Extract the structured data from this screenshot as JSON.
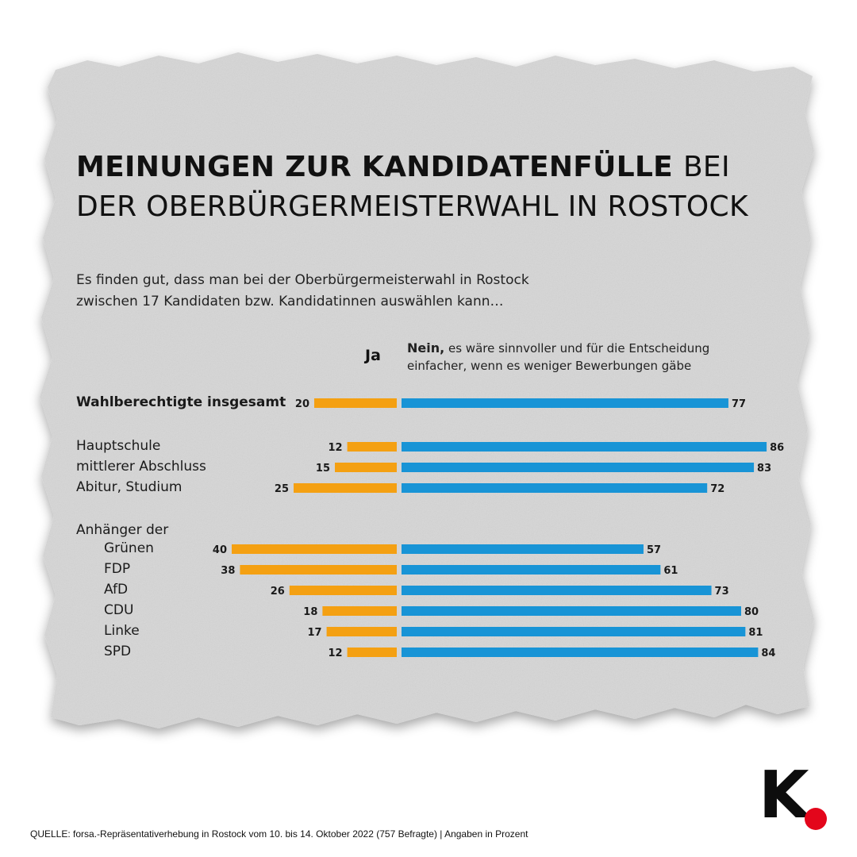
{
  "title": {
    "bold": "MEINUNGEN ZUR KANDIDATENFÜLLE",
    "light_1": "BEI",
    "light_2": "DER OBERBÜRGERMEISTERWAHL IN ROSTOCK"
  },
  "subtitle": {
    "line1": "Es finden gut, dass man bei der Oberbürgermeisterwahl in Rostock",
    "line2": "zwischen 17 Kandidaten bzw. Kandidatinnen auswählen kann…"
  },
  "legend": {
    "ja": "Ja",
    "nein_bold": "Nein,",
    "nein_text_1": "es wäre sinnvoller und für die Entscheidung",
    "nein_text_2": "einfacher, wenn es weniger Bewerbungen gäbe"
  },
  "group_label": "Anhänger der",
  "colors": {
    "ja": "#f4a012",
    "nein": "#1894d6",
    "logo_dot": "#e3061b"
  },
  "chart_data": {
    "type": "bar",
    "orientation": "diverging-horizontal",
    "categories": [
      "Wahlberechtigte insgesamt",
      "Hauptschule",
      "mittlerer Abschluss",
      "Abitur, Studium",
      "Grünen",
      "FDP",
      "AfD",
      "CDU",
      "Linke",
      "SPD"
    ],
    "series": [
      {
        "name": "Ja",
        "values": [
          20,
          12,
          15,
          25,
          40,
          38,
          26,
          18,
          17,
          12
        ]
      },
      {
        "name": "Nein",
        "values": [
          77,
          86,
          83,
          72,
          57,
          61,
          73,
          80,
          81,
          84
        ]
      }
    ],
    "unit": "Prozent",
    "grid": false,
    "legend": "top"
  },
  "source": "QUELLE: forsa.-Repräsentativerhebung in Rostock vom 10. bis 14. Oktober 2022 (757 Befragte) | Angaben in Prozent",
  "logo": {
    "letter": "K"
  }
}
